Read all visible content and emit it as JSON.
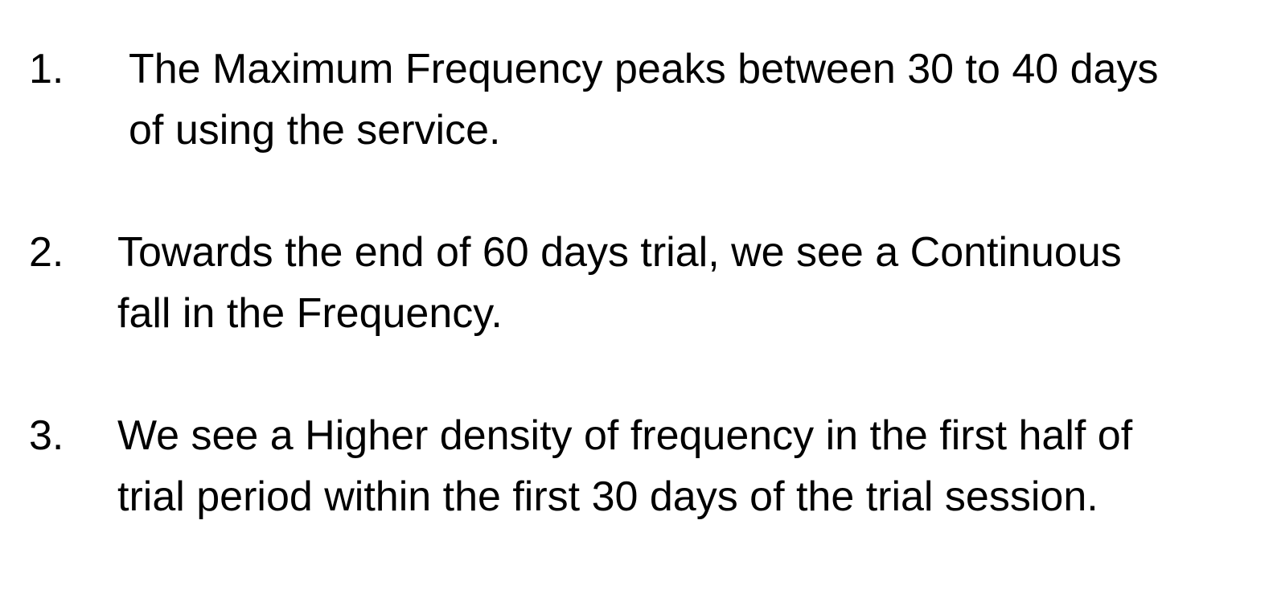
{
  "observations": [
    {
      "number": "1.",
      "lines": [
        "The Maximum Frequency peaks between 30 to 40 days",
        "of using the service."
      ]
    },
    {
      "number": "2.",
      "lines": [
        "Towards the end of 60 days trial, we see a Continuous",
        "fall in the Frequency."
      ]
    },
    {
      "number": "3.",
      "lines": [
        "We see a Higher density of frequency in the first half of",
        "trial period within the first 30 days of the trial session."
      ]
    }
  ]
}
